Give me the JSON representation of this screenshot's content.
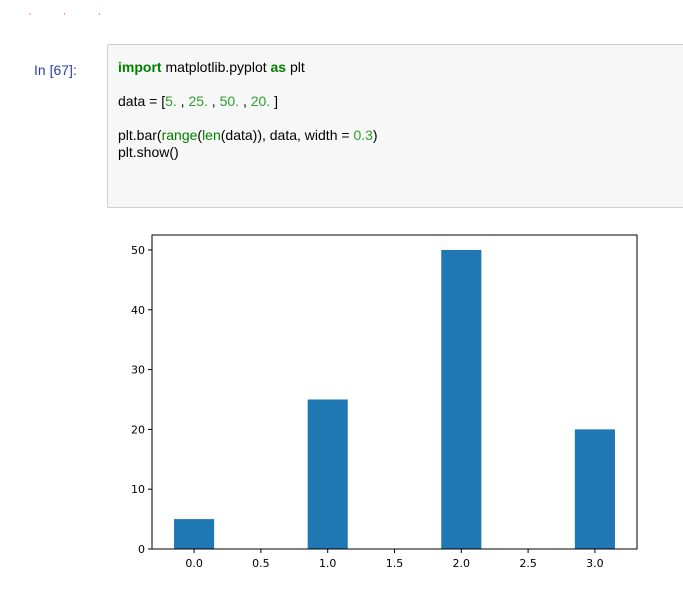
{
  "notebook": {
    "prompt": "In [67]:",
    "code_lines": [
      [
        {
          "text": "import",
          "cls": "kw"
        },
        {
          "text": " matplotlib.pyplot ",
          "cls": ""
        },
        {
          "text": "as",
          "cls": "kw"
        },
        {
          "text": " plt",
          "cls": ""
        }
      ],
      [],
      [
        {
          "text": "data = [",
          "cls": ""
        },
        {
          "text": "5.",
          "cls": "num"
        },
        {
          "text": " , ",
          "cls": ""
        },
        {
          "text": "25.",
          "cls": "num"
        },
        {
          "text": " , ",
          "cls": ""
        },
        {
          "text": "50.",
          "cls": "num"
        },
        {
          "text": " , ",
          "cls": ""
        },
        {
          "text": "20.",
          "cls": "num"
        },
        {
          "text": " ]",
          "cls": ""
        }
      ],
      [],
      [
        {
          "text": "plt.bar(",
          "cls": ""
        },
        {
          "text": "range",
          "cls": "bi"
        },
        {
          "text": "(",
          "cls": ""
        },
        {
          "text": "len",
          "cls": "bi"
        },
        {
          "text": "(data)), data, width = ",
          "cls": ""
        },
        {
          "text": "0.3",
          "cls": "num"
        },
        {
          "text": ")",
          "cls": ""
        }
      ],
      [
        {
          "text": "plt.show()",
          "cls": ""
        }
      ]
    ]
  },
  "chart_data": {
    "type": "bar",
    "x": [
      0,
      1,
      2,
      3
    ],
    "values": [
      5,
      25,
      50,
      20
    ],
    "bar_width": 0.3,
    "bar_color": "#1f77b4",
    "xlim": [
      -0.315,
      3.315
    ],
    "ylim": [
      0,
      52.5
    ],
    "xticks": [
      0.0,
      0.5,
      1.0,
      1.5,
      2.0,
      2.5,
      3.0
    ],
    "xtick_labels": [
      "0.0",
      "0.5",
      "1.0",
      "1.5",
      "2.0",
      "2.5",
      "3.0"
    ],
    "yticks": [
      0,
      10,
      20,
      30,
      40,
      50
    ],
    "ytick_labels": [
      "0",
      "10",
      "20",
      "30",
      "40",
      "50"
    ],
    "title": "",
    "xlabel": "",
    "ylabel": "",
    "grid": false
  }
}
